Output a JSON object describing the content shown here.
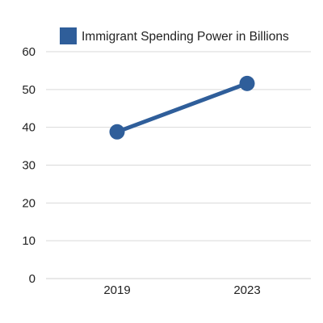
{
  "chart_data": {
    "type": "line",
    "categories": [
      "2019",
      "2023"
    ],
    "series": [
      {
        "name": "Immigrant Spending Power in Billions",
        "values": [
          38.8,
          51.6
        ],
        "color": "#2f5e9a"
      }
    ],
    "ylim": [
      0,
      60
    ],
    "yticks": [
      "0",
      "10",
      "20",
      "30",
      "40",
      "50",
      "60"
    ],
    "grid": true,
    "legend_position": "top-center",
    "gridline_color": "#d9d9d9"
  }
}
